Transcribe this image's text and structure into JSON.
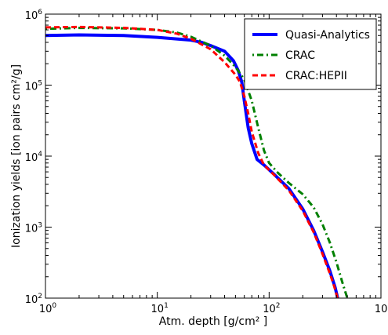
{
  "chart_data": {
    "type": "line",
    "title": "",
    "xlabel": "Atm. depth [g/cm²  ]",
    "ylabel": "Ionization yields [ion pairs cm²/g]",
    "xscale": "log",
    "yscale": "log",
    "xlim": [
      1,
      1000
    ],
    "ylim": [
      100,
      1000000
    ],
    "x_ticks": [
      {
        "value": 1,
        "base": "10",
        "exp": "0"
      },
      {
        "value": 10,
        "base": "10",
        "exp": "1"
      },
      {
        "value": 100,
        "base": "10",
        "exp": "2"
      },
      {
        "value": 1000,
        "base": "10",
        "exp": "3"
      }
    ],
    "y_ticks": [
      {
        "value": 100,
        "base": "10",
        "exp": "2"
      },
      {
        "value": 1000,
        "base": "10",
        "exp": "3"
      },
      {
        "value": 10000,
        "base": "10",
        "exp": "4"
      },
      {
        "value": 100000,
        "base": "10",
        "exp": "5"
      },
      {
        "value": 1000000,
        "base": "10",
        "exp": "6"
      }
    ],
    "grid": false,
    "legend_position": "top-right",
    "series": [
      {
        "name": "Quasi-Analytics",
        "color": "#0000ff",
        "style": "solid",
        "points": [
          [
            1,
            500000
          ],
          [
            2,
            510000
          ],
          [
            5,
            500000
          ],
          [
            10,
            470000
          ],
          [
            20,
            430000
          ],
          [
            25,
            400000
          ],
          [
            30,
            360000
          ],
          [
            40,
            300000
          ],
          [
            48,
            220000
          ],
          [
            53,
            160000
          ],
          [
            57,
            110000
          ],
          [
            60,
            60000
          ],
          [
            65,
            25000
          ],
          [
            70,
            15000
          ],
          [
            78,
            9000
          ],
          [
            90,
            7500
          ],
          [
            110,
            5600
          ],
          [
            150,
            3500
          ],
          [
            200,
            1800
          ],
          [
            250,
            900
          ],
          [
            300,
            450
          ],
          [
            350,
            240
          ],
          [
            390,
            140
          ],
          [
            410,
            100
          ]
        ]
      },
      {
        "name": "CRAC",
        "color": "#008000",
        "style": "dashdot",
        "points": [
          [
            1,
            620000
          ],
          [
            2,
            640000
          ],
          [
            5,
            630000
          ],
          [
            10,
            600000
          ],
          [
            15,
            550000
          ],
          [
            20,
            480000
          ],
          [
            30,
            360000
          ],
          [
            40,
            260000
          ],
          [
            50,
            180000
          ],
          [
            60,
            120000
          ],
          [
            70,
            60000
          ],
          [
            80,
            25000
          ],
          [
            90,
            12000
          ],
          [
            100,
            8000
          ],
          [
            120,
            5800
          ],
          [
            150,
            4200
          ],
          [
            200,
            2900
          ],
          [
            250,
            1900
          ],
          [
            300,
            1100
          ],
          [
            350,
            600
          ],
          [
            400,
            320
          ],
          [
            450,
            170
          ],
          [
            500,
            100
          ]
        ]
      },
      {
        "name": "CRAC:HEPII",
        "color": "#ff0000",
        "style": "dashed",
        "points": [
          [
            1,
            650000
          ],
          [
            2,
            660000
          ],
          [
            5,
            640000
          ],
          [
            10,
            600000
          ],
          [
            15,
            530000
          ],
          [
            20,
            450000
          ],
          [
            30,
            320000
          ],
          [
            40,
            210000
          ],
          [
            50,
            140000
          ],
          [
            55,
            110000
          ],
          [
            60,
            70000
          ],
          [
            65,
            40000
          ],
          [
            70,
            22000
          ],
          [
            80,
            11000
          ],
          [
            90,
            7500
          ],
          [
            110,
            5500
          ],
          [
            150,
            3300
          ],
          [
            200,
            1700
          ],
          [
            250,
            850
          ],
          [
            300,
            420
          ],
          [
            350,
            220
          ],
          [
            380,
            150
          ],
          [
            410,
            100
          ]
        ]
      }
    ]
  }
}
